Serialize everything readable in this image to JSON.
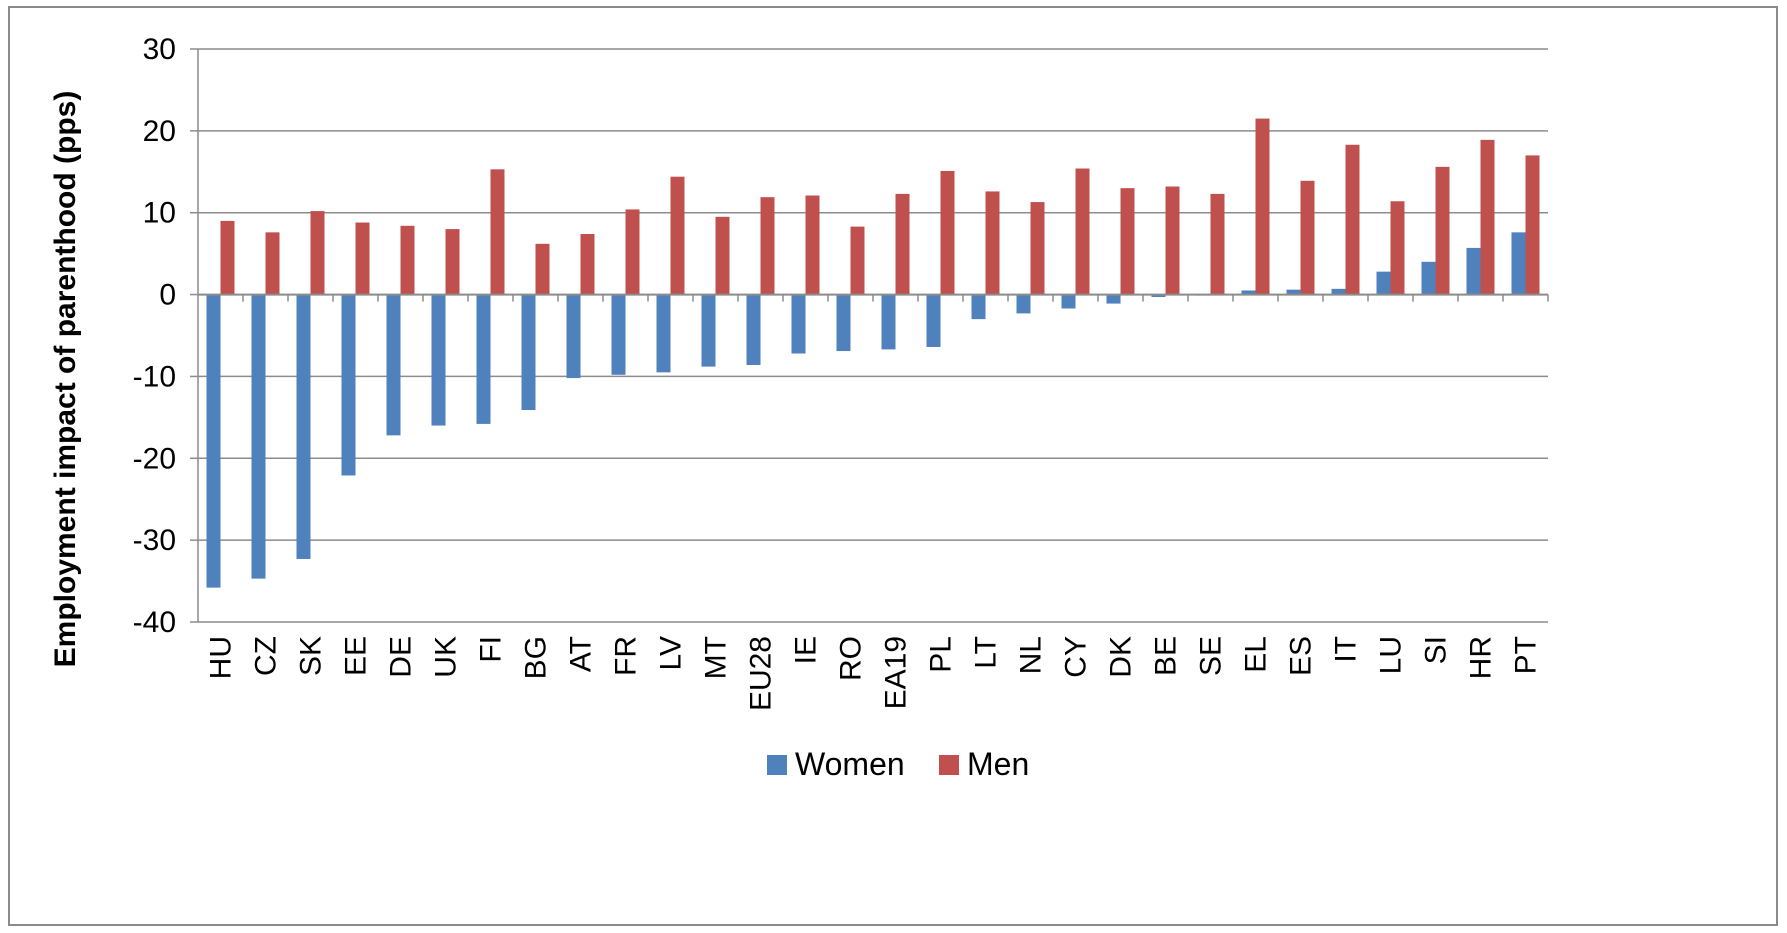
{
  "chart_data": {
    "type": "bar",
    "title": "",
    "xlabel": "",
    "ylabel": "Employment impact of parenthood (pps)",
    "ylim": [
      -40,
      30
    ],
    "yticks": [
      30,
      20,
      10,
      0,
      -10,
      -20,
      -30,
      -40
    ],
    "grid": true,
    "legend_position": "bottom",
    "categories": [
      "HU",
      "CZ",
      "SK",
      "EE",
      "DE",
      "UK",
      "FI",
      "BG",
      "AT",
      "FR",
      "LV",
      "MT",
      "EU28",
      "IE",
      "RO",
      "EA19",
      "PL",
      "LT",
      "NL",
      "CY",
      "DK",
      "BE",
      "SE",
      "EL",
      "ES",
      "IT",
      "LU",
      "SI",
      "HR",
      "PT"
    ],
    "series": [
      {
        "name": "Women",
        "color": "#4f81bd",
        "values": [
          -35.8,
          -34.7,
          -32.3,
          -22.1,
          -17.2,
          -16.0,
          -15.8,
          -14.1,
          -10.2,
          -9.8,
          -9.5,
          -8.8,
          -8.6,
          -7.2,
          -6.9,
          -6.7,
          -6.4,
          -3.0,
          -2.3,
          -1.7,
          -1.1,
          -0.3,
          -0.1,
          0.5,
          0.6,
          0.7,
          2.8,
          4.0,
          5.7,
          7.6
        ]
      },
      {
        "name": "Men",
        "color": "#c0504d",
        "values": [
          9.0,
          7.6,
          10.2,
          8.8,
          8.4,
          8.0,
          15.3,
          6.2,
          7.4,
          10.4,
          14.4,
          9.5,
          11.9,
          12.1,
          8.3,
          12.3,
          15.1,
          12.6,
          11.3,
          15.4,
          13.0,
          13.2,
          12.3,
          21.5,
          13.9,
          18.3,
          11.4,
          15.6,
          18.9,
          17.0
        ]
      }
    ]
  }
}
